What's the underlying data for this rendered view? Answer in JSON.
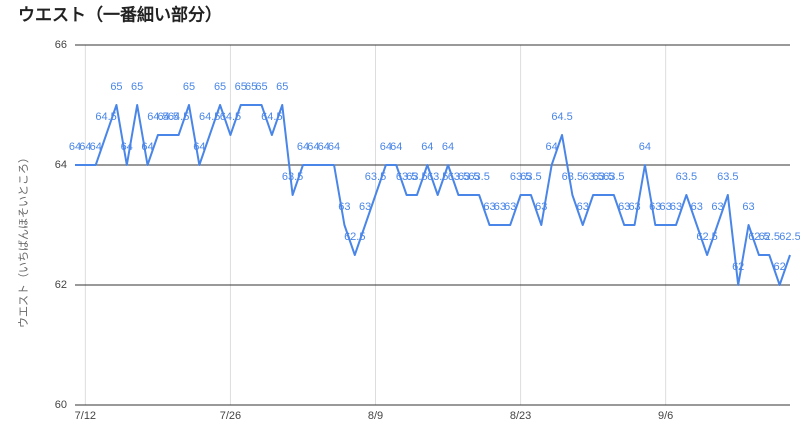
{
  "chart_data": {
    "type": "line",
    "title": "ウエスト（一番細い部分）",
    "y_label": "ウエスト（いちばんほそいところ）",
    "categories": [
      null,
      "7/12",
      null,
      null,
      null,
      null,
      null,
      null,
      null,
      null,
      null,
      null,
      null,
      null,
      null,
      "7/26",
      null,
      null,
      null,
      null,
      null,
      null,
      null,
      null,
      null,
      null,
      null,
      null,
      null,
      "8/9",
      null,
      null,
      null,
      null,
      null,
      null,
      null,
      null,
      null,
      null,
      null,
      null,
      null,
      "8/23",
      null,
      null,
      null,
      null,
      null,
      null,
      null,
      null,
      null,
      null,
      null,
      null,
      null,
      "9/6",
      null,
      null,
      null,
      null,
      null,
      null,
      null,
      null,
      null,
      null,
      null,
      null
    ],
    "series": [
      {
        "color": "#4a86e8",
        "values": [
          64,
          64,
          64,
          64.5,
          65,
          64,
          65,
          64,
          64.5,
          64.5,
          64.5,
          65,
          64,
          64.5,
          65,
          64.5,
          65,
          65,
          65,
          64.5,
          65,
          63.5,
          64,
          64,
          64,
          64,
          63,
          62.5,
          63,
          63.5,
          64,
          64,
          63.5,
          63.5,
          64,
          63.5,
          64,
          63.5,
          63.5,
          63.5,
          63,
          63,
          63,
          63.5,
          63.5,
          63,
          64,
          64.5,
          63.5,
          63,
          63.5,
          63.5,
          63.5,
          63,
          63,
          64,
          63,
          63,
          63,
          63.5,
          63,
          62.5,
          63,
          63.5,
          62,
          63,
          62.5,
          62.5,
          62,
          62.5
        ]
      }
    ],
    "ylim": [
      60,
      66
    ],
    "yticks": [
      60,
      62,
      64,
      66
    ],
    "grid": true
  }
}
